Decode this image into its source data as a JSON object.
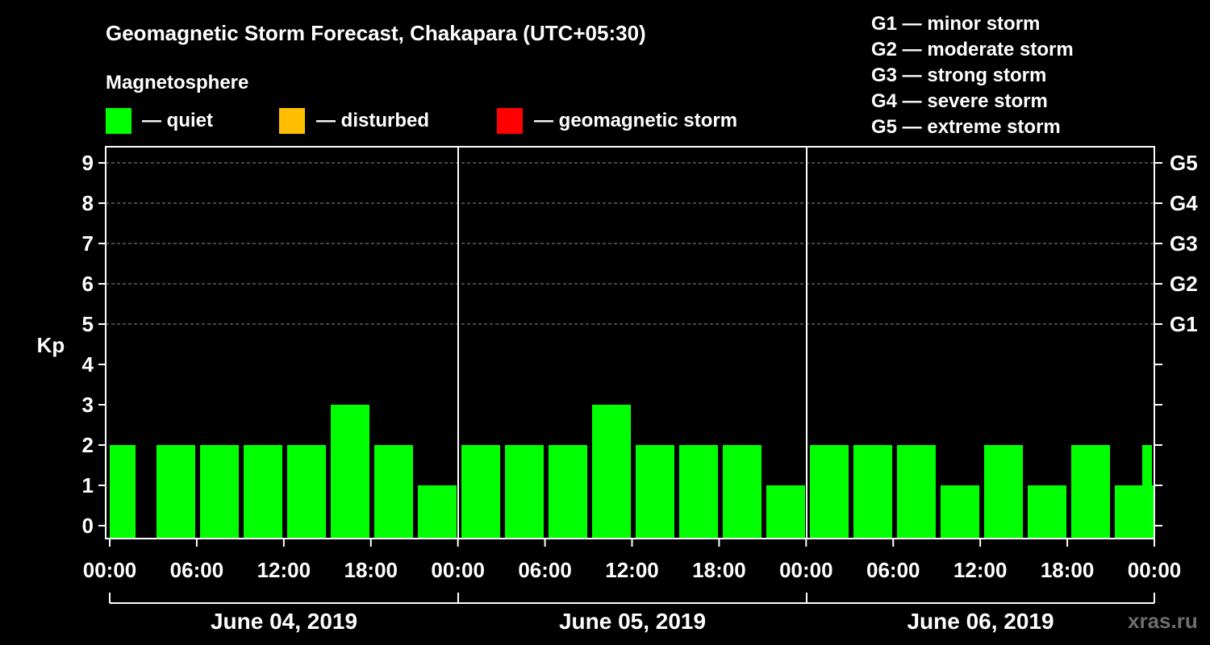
{
  "chart_data": {
    "type": "bar",
    "title": "Geomagnetic Storm Forecast, Chakapara (UTC+05:30)",
    "legend_title": "Magnetosphere",
    "legend": [
      {
        "label": "— quiet",
        "color": "#00ff00"
      },
      {
        "label": "— disturbed",
        "color": "#ffbf00"
      },
      {
        "label": "— geomagnetic storm",
        "color": "#ff0000"
      }
    ],
    "storm_scale": [
      "G1 — minor storm",
      "G2 — moderate storm",
      "G3 — strong storm",
      "G4 — severe storm",
      "G5 — extreme storm"
    ],
    "ylabel": "Kp",
    "ylim": [
      0,
      9
    ],
    "y_ticks": [
      "0",
      "1",
      "2",
      "3",
      "4",
      "5",
      "6",
      "7",
      "8",
      "9"
    ],
    "right_ticks": [
      {
        "kp": 5,
        "label": "G1"
      },
      {
        "kp": 6,
        "label": "G2"
      },
      {
        "kp": 7,
        "label": "G3"
      },
      {
        "kp": 8,
        "label": "G4"
      },
      {
        "kp": 9,
        "label": "G5"
      }
    ],
    "x_tick_labels": [
      "00:00",
      "06:00",
      "12:00",
      "18:00",
      "00:00",
      "06:00",
      "12:00",
      "18:00",
      "00:00",
      "06:00",
      "12:00",
      "18:00",
      "00:00"
    ],
    "days": [
      "June 04, 2019",
      "June 05, 2019",
      "June 06, 2019"
    ],
    "categories": [
      "00:00",
      "03:00",
      "06:00",
      "09:00",
      "12:00",
      "15:00",
      "18:00",
      "21:00",
      "00:00",
      "03:00",
      "06:00",
      "09:00",
      "12:00",
      "15:00",
      "18:00",
      "21:00",
      "00:00",
      "03:00",
      "06:00",
      "09:00",
      "12:00",
      "15:00",
      "18:00",
      "21:00"
    ],
    "values": [
      2,
      2,
      2,
      2,
      2,
      3,
      2,
      1,
      2,
      2,
      2,
      3,
      2,
      2,
      2,
      1,
      2,
      2,
      2,
      1,
      2,
      1,
      2,
      1
    ],
    "extra_value": 2,
    "bar_color": "#00ff00",
    "grid_lines": "dashed at Kp 5-9"
  },
  "watermark": "xras.ru"
}
